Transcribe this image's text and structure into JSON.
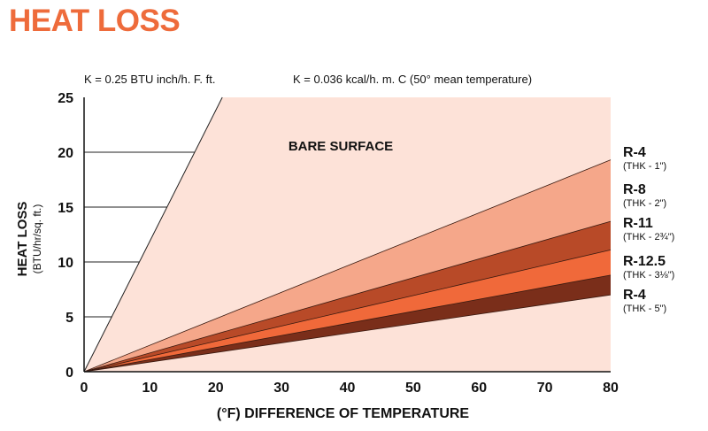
{
  "header": {
    "title": "HEAT LOSS",
    "note_left": "K = 0.25 BTU inch/h. F. ft.",
    "note_right": "K = 0.036 kcal/h. m. C (50° mean temperature)"
  },
  "chart_data": {
    "type": "area",
    "xlabel": "(°F) DIFFERENCE OF TEMPERATURE",
    "ylabel": "HEAT LOSS",
    "ylabel_sub": "(BTU/hr/sq. ft.)",
    "xlim": [
      0,
      80
    ],
    "ylim": [
      0,
      25
    ],
    "x_ticks": [
      "0",
      "10",
      "20",
      "30",
      "40",
      "50",
      "60",
      "70",
      "80"
    ],
    "y_ticks": [
      "0",
      "5",
      "10",
      "15",
      "20",
      "25"
    ],
    "region_label": "BARE SURFACE",
    "bare_surface": {
      "x": [
        0,
        21
      ],
      "y": [
        0,
        25
      ]
    },
    "series": [
      {
        "name": "R-4",
        "sub": "(THK - 1\")",
        "x": [
          0,
          80
        ],
        "y": [
          0,
          19.3
        ],
        "color": "#f5a78a"
      },
      {
        "name": "R-8",
        "sub": "(THK - 2\")",
        "x": [
          0,
          80
        ],
        "y": [
          0,
          13.7
        ],
        "color": "#b84a28"
      },
      {
        "name": "R-11",
        "sub": "(THK - 2¾\")",
        "x": [
          0,
          80
        ],
        "y": [
          0,
          11.1
        ],
        "color": "#f0693a"
      },
      {
        "name": "R-12.5",
        "sub": "(THK - 3⅛\")",
        "x": [
          0,
          80
        ],
        "y": [
          0,
          8.8
        ],
        "color": "#7a2e1a"
      },
      {
        "name": "R-4",
        "sub": "(THK - 5\")",
        "x": [
          0,
          80
        ],
        "y": [
          0,
          7.0
        ],
        "color": "#fde2d8"
      }
    ],
    "background_color": "#fde2d8",
    "grid": "horizontal lines left of bare-surface line"
  }
}
